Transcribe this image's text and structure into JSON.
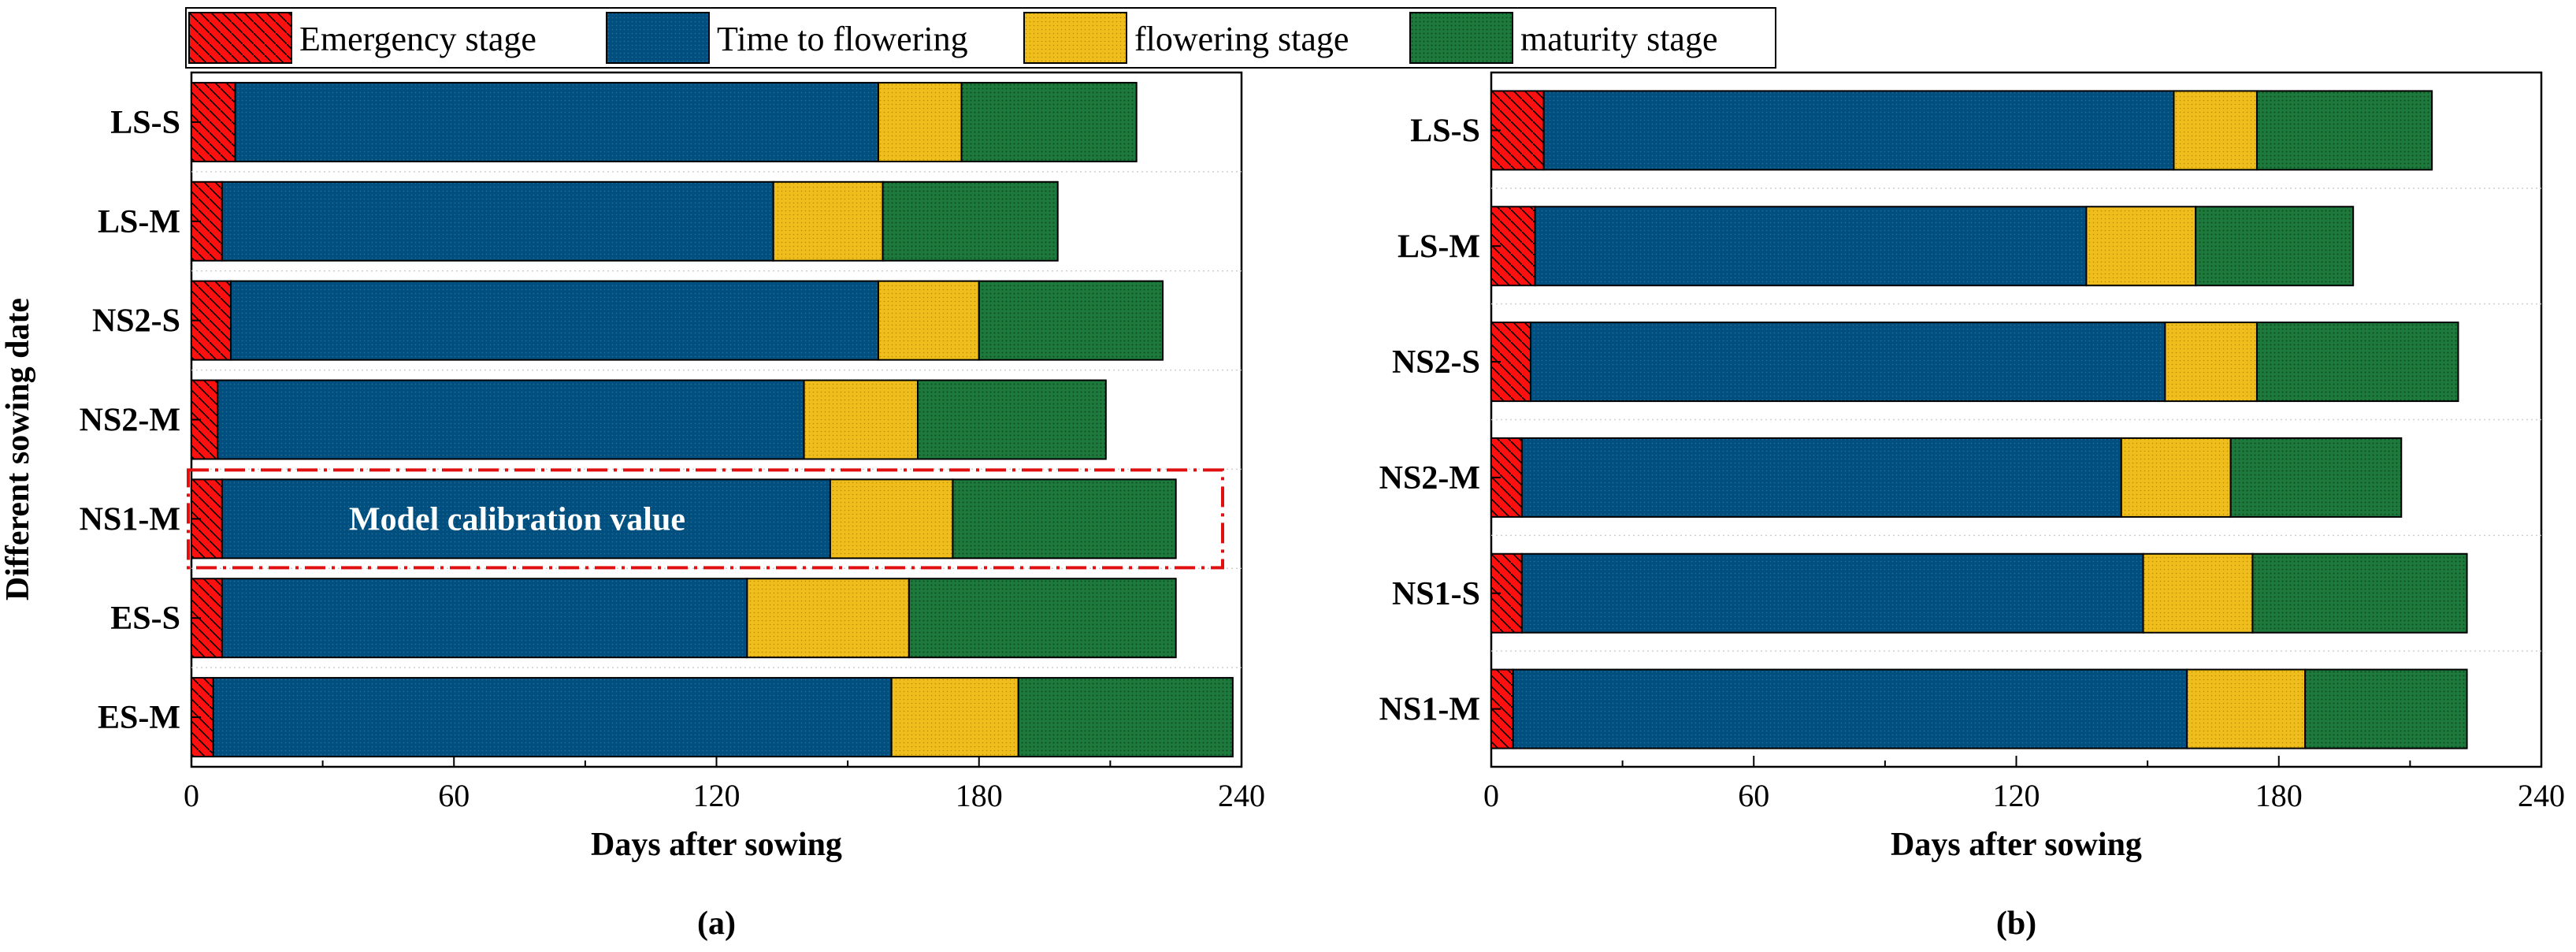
{
  "legend": {
    "items": [
      {
        "label": "Emergency stage",
        "color": "#ff1010",
        "pattern": "hatch"
      },
      {
        "label": "Time to flowering",
        "color": "#004f7f",
        "pattern": "dots"
      },
      {
        "label": "flowering stage",
        "color": "#f0be1c",
        "pattern": "dots"
      },
      {
        "label": "maturity stage",
        "color": "#1d7a3c",
        "pattern": "dots"
      }
    ]
  },
  "y_axis_title": "Different sowing date",
  "chart_data": [
    {
      "type": "bar",
      "orientation": "horizontal",
      "stacked": true,
      "panel_label": "(a)",
      "xlabel": "Days after sowing",
      "ylabel": "Different sowing date",
      "xlim": [
        0,
        240
      ],
      "xticks": [
        "0",
        "60",
        "120",
        "180",
        "240"
      ],
      "categories": [
        "LS-S",
        "LS-M",
        "NS2-S",
        "NS2-M",
        "NS1-M",
        "ES-S",
        "ES-M"
      ],
      "series": [
        {
          "name": "Emergency stage",
          "values": [
            10,
            7,
            9,
            6,
            7,
            7,
            5
          ]
        },
        {
          "name": "Time to flowering",
          "values": [
            147,
            126,
            148,
            134,
            139,
            120,
            155
          ]
        },
        {
          "name": "flowering stage",
          "values": [
            19,
            25,
            23,
            26,
            28,
            37,
            29
          ]
        },
        {
          "name": "maturity stage",
          "values": [
            40,
            40,
            42,
            43,
            51,
            61,
            49
          ]
        }
      ],
      "annotation": {
        "text": "Model calibration value",
        "category": "NS1-M"
      }
    },
    {
      "type": "bar",
      "orientation": "horizontal",
      "stacked": true,
      "panel_label": "(b)",
      "xlabel": "Days after sowing",
      "ylabel": "",
      "xlim": [
        0,
        240
      ],
      "xticks": [
        "0",
        "60",
        "120",
        "180",
        "240"
      ],
      "categories": [
        "LS-S",
        "LS-M",
        "NS2-S",
        "NS2-M",
        "NS1-S",
        "NS1-M"
      ],
      "series": [
        {
          "name": "Emergency stage",
          "values": [
            12,
            10,
            9,
            7,
            7,
            5
          ]
        },
        {
          "name": "Time to flowering",
          "values": [
            144,
            126,
            145,
            137,
            142,
            154
          ]
        },
        {
          "name": "flowering stage",
          "values": [
            19,
            25,
            21,
            25,
            25,
            27
          ]
        },
        {
          "name": "maturity stage",
          "values": [
            40,
            36,
            46,
            39,
            49,
            37
          ]
        }
      ]
    }
  ]
}
